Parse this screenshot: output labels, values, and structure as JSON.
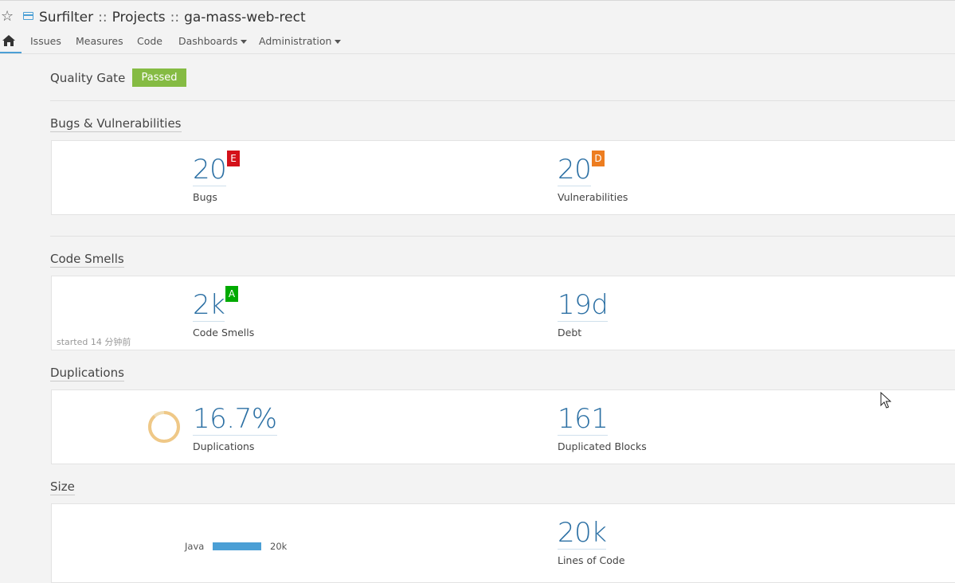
{
  "header": {
    "breadcrumb": [
      "Surfilter",
      "Projects",
      "ga-mass-web-rect"
    ],
    "separator": "::"
  },
  "nav": {
    "items": [
      {
        "label": "Issues"
      },
      {
        "label": "Measures"
      },
      {
        "label": "Code"
      },
      {
        "label": "Dashboards"
      },
      {
        "label": "Administration"
      }
    ]
  },
  "quality_gate": {
    "label": "Quality Gate",
    "status": "Passed",
    "status_color": "#85bb43"
  },
  "bugs_vulns": {
    "title": "Bugs & Vulnerabilities",
    "bugs": {
      "value": "20",
      "label": "Bugs",
      "rating": "E",
      "rating_color": "#d4111a"
    },
    "vulnerabilities": {
      "value": "20",
      "label": "Vulnerabilities",
      "rating": "D",
      "rating_color": "#ed7d20"
    }
  },
  "code_smells": {
    "title": "Code Smells",
    "smells": {
      "value": "2k",
      "label": "Code Smells",
      "rating": "A",
      "rating_color": "#00aa00"
    },
    "debt": {
      "value": "19d",
      "label": "Debt"
    },
    "started_note": "started 14 分钟前"
  },
  "duplications": {
    "title": "Duplications",
    "density": {
      "value": "16.7%",
      "label": "Duplications"
    },
    "blocks": {
      "value": "161",
      "label": "Duplicated Blocks"
    }
  },
  "size": {
    "title": "Size",
    "languages": [
      {
        "name": "Java",
        "value": "20k"
      }
    ],
    "lines": {
      "value": "20k",
      "label": "Lines of Code"
    }
  },
  "colors": {
    "accent": "#4b9fd5",
    "metric_value": "#2c70a4"
  }
}
